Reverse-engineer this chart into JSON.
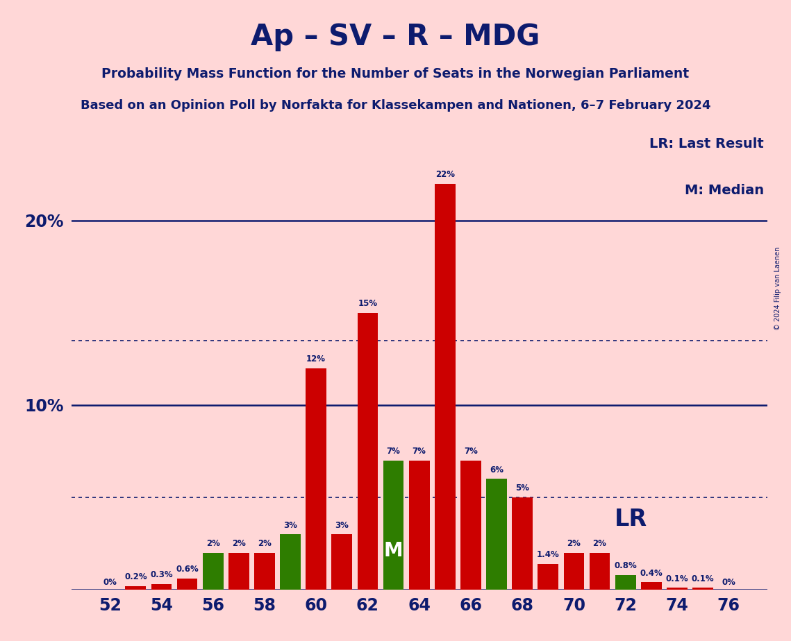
{
  "title1": "Ap – SV – R – MDG",
  "title2": "Probability Mass Function for the Number of Seats in the Norwegian Parliament",
  "title3": "Based on an Opinion Poll by Norfakta for Klassekampen and Nationen, 6–7 February 2024",
  "copyright": "© 2024 Filip van Laenen",
  "seats": [
    52,
    53,
    54,
    55,
    56,
    57,
    58,
    59,
    60,
    61,
    62,
    63,
    64,
    65,
    66,
    67,
    68,
    69,
    70,
    71,
    72,
    73,
    74,
    75,
    76
  ],
  "probabilities": [
    0.0,
    0.2,
    0.3,
    0.6,
    2.0,
    2.0,
    2.0,
    3.0,
    12.0,
    3.0,
    15.0,
    7.0,
    7.0,
    22.0,
    7.0,
    6.0,
    5.0,
    1.4,
    2.0,
    2.0,
    0.8,
    0.4,
    0.1,
    0.1,
    0.0
  ],
  "labels": [
    "0%",
    "0.2%",
    "0.3%",
    "0.6%",
    "2%",
    "2%",
    "2%",
    "3%",
    "12%",
    "3%",
    "15%",
    "7%",
    "7%",
    "22%",
    "7%",
    "6%",
    "5%",
    "1.4%",
    "2%",
    "2%",
    "0.8%",
    "0.4%",
    "0.1%",
    "0.1%",
    "0%"
  ],
  "green_seats": [
    56,
    59,
    63,
    67,
    72
  ],
  "median_seat": 63,
  "lr_seat": 68,
  "bar_color_red": "#CC0000",
  "bar_color_green": "#2E7D00",
  "background_color": "#FFD7D7",
  "text_color": "#0D1B6E",
  "solid_line_color": "#0D1B6E",
  "dotted_line_y1": 5.0,
  "dotted_line_y2": 13.5,
  "ytick_vals": [
    10,
    20
  ],
  "ytick_labels": [
    "10%",
    "20%"
  ],
  "xticks": [
    52,
    54,
    56,
    58,
    60,
    62,
    64,
    66,
    68,
    70,
    72,
    74,
    76
  ],
  "xlim": [
    50.5,
    77.5
  ],
  "ylim": [
    0,
    25
  ],
  "figsize": [
    11.39,
    9.24
  ],
  "lr_label": "LR: Last Result",
  "m_label": "M: Median",
  "bar_width": 0.8
}
